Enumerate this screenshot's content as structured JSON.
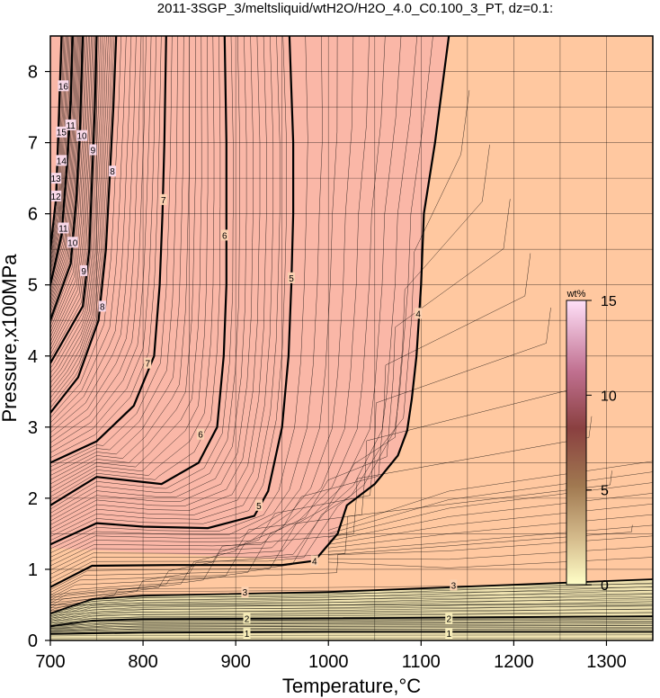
{
  "chart_data": {
    "type": "contour",
    "title": "2011-3SGP_3/meltsliquid/wtH2O/H2O_4.0_C0.100_3_PT, dz=0.1:",
    "xlabel": "Temperature,°C",
    "ylabel": "Pressure,x100MPa",
    "xlim": [
      700,
      1350
    ],
    "ylim": [
      0,
      8.5
    ],
    "xticks": [
      700,
      800,
      900,
      1000,
      1100,
      1200,
      1300
    ],
    "yticks": [
      0,
      1,
      2,
      3,
      4,
      5,
      6,
      7,
      8
    ],
    "grid": true,
    "colorbar": {
      "unit": "wt%",
      "range": [
        0,
        15
      ],
      "ticks": [
        0,
        5,
        10,
        15
      ],
      "colors": [
        "#ffffc8",
        "#d8c090",
        "#a07850",
        "#8a4040",
        "#c07090",
        "#ffe0f8"
      ]
    },
    "fill_colors": {
      "low_pressure": "#f0e6b4",
      "mid": "#f8c6a6",
      "high_water": "#f8a0a8",
      "bulk": "#ffc8a0"
    },
    "contours": [
      {
        "level": 1,
        "points": [
          [
            700,
            0.09
          ],
          [
            800,
            0.11
          ],
          [
            1000,
            0.12
          ],
          [
            1350,
            0.12
          ]
        ]
      },
      {
        "level": 2,
        "points": [
          [
            700,
            0.2
          ],
          [
            745,
            0.28
          ],
          [
            800,
            0.3
          ],
          [
            1000,
            0.31
          ],
          [
            1350,
            0.34
          ]
        ]
      },
      {
        "level": 3,
        "points": [
          [
            700,
            0.38
          ],
          [
            745,
            0.58
          ],
          [
            800,
            0.63
          ],
          [
            1000,
            0.68
          ],
          [
            1350,
            0.86
          ]
        ]
      },
      {
        "level": 4,
        "points": [
          [
            700,
            0.75
          ],
          [
            745,
            1.05
          ],
          [
            830,
            1.06
          ],
          [
            950,
            1.06
          ],
          [
            985,
            1.12
          ],
          [
            1010,
            1.5
          ],
          [
            1020,
            1.9
          ],
          [
            1050,
            2.2
          ],
          [
            1075,
            2.6
          ],
          [
            1085,
            2.95
          ],
          [
            1090,
            3.4
          ],
          [
            1095,
            4.0
          ],
          [
            1100,
            5.0
          ],
          [
            1103,
            6.0
          ],
          [
            1115,
            7.0
          ],
          [
            1120,
            7.5
          ],
          [
            1130,
            8.5
          ]
        ]
      },
      {
        "level": 5,
        "points": [
          [
            700,
            1.35
          ],
          [
            750,
            1.65
          ],
          [
            800,
            1.6
          ],
          [
            870,
            1.58
          ],
          [
            920,
            1.75
          ],
          [
            935,
            2.1
          ],
          [
            950,
            3.0
          ],
          [
            957,
            4.0
          ],
          [
            960,
            5.0
          ],
          [
            962,
            6.0
          ],
          [
            962,
            7.0
          ],
          [
            958,
            8.5
          ]
        ]
      },
      {
        "level": 6,
        "points": [
          [
            700,
            1.9
          ],
          [
            750,
            2.3
          ],
          [
            820,
            2.2
          ],
          [
            860,
            2.5
          ],
          [
            880,
            3.0
          ],
          [
            887,
            4.0
          ],
          [
            890,
            5.0
          ],
          [
            890,
            6.0
          ],
          [
            890,
            7.0
          ],
          [
            888,
            8.5
          ]
        ]
      },
      {
        "level": 7,
        "points": [
          [
            700,
            2.5
          ],
          [
            750,
            2.8
          ],
          [
            790,
            3.3
          ],
          [
            812,
            4.0
          ],
          [
            818,
            5.0
          ],
          [
            821,
            6.0
          ],
          [
            823,
            7.0
          ],
          [
            825,
            8.5
          ]
        ]
      },
      {
        "level": 8,
        "points": [
          [
            700,
            3.2
          ],
          [
            730,
            3.7
          ],
          [
            752,
            4.5
          ],
          [
            760,
            5.5
          ],
          [
            764,
            6.5
          ],
          [
            768,
            7.5
          ],
          [
            771,
            8.5
          ]
        ]
      },
      {
        "level": 9,
        "points": [
          [
            700,
            3.9
          ],
          [
            735,
            4.7
          ],
          [
            742,
            5.5
          ],
          [
            745,
            6.5
          ],
          [
            748,
            7.5
          ],
          [
            750,
            8.5
          ]
        ]
      },
      {
        "level": 10,
        "points": [
          [
            700,
            4.5
          ],
          [
            722,
            5.3
          ],
          [
            728,
            6.2
          ],
          [
            732,
            7.2
          ],
          [
            735,
            8.5
          ]
        ]
      },
      {
        "level": 11,
        "points": [
          [
            700,
            5.0
          ],
          [
            712,
            5.7
          ],
          [
            718,
            6.7
          ],
          [
            722,
            7.6
          ],
          [
            724,
            8.5
          ]
        ]
      },
      {
        "level": 12,
        "points": [
          [
            700,
            5.5
          ],
          [
            706,
            6.2
          ],
          [
            709,
            7.3
          ],
          [
            712,
            8.5
          ]
        ]
      }
    ],
    "contour_labels": [
      {
        "text": "1",
        "x": 912,
        "y": 0.1
      },
      {
        "text": "1",
        "x": 1130,
        "y": 0.1
      },
      {
        "text": "2",
        "x": 912,
        "y": 0.31
      },
      {
        "text": "2",
        "x": 1130,
        "y": 0.31
      },
      {
        "text": "3",
        "x": 910,
        "y": 0.68
      },
      {
        "text": "3",
        "x": 1135,
        "y": 0.78
      },
      {
        "text": "4",
        "x": 985,
        "y": 1.12
      },
      {
        "text": "4",
        "x": 1097,
        "y": 4.6
      },
      {
        "text": "5",
        "x": 925,
        "y": 1.9
      },
      {
        "text": "5",
        "x": 960,
        "y": 5.1
      },
      {
        "text": "6",
        "x": 862,
        "y": 2.9
      },
      {
        "text": "6",
        "x": 888,
        "y": 5.7
      },
      {
        "text": "7",
        "x": 805,
        "y": 3.9
      },
      {
        "text": "7",
        "x": 822,
        "y": 6.2
      },
      {
        "text": "8",
        "x": 756,
        "y": 4.7
      },
      {
        "text": "8",
        "x": 767,
        "y": 6.6
      },
      {
        "text": "9",
        "x": 736,
        "y": 5.2
      },
      {
        "text": "9",
        "x": 746,
        "y": 6.9
      },
      {
        "text": "10",
        "x": 724,
        "y": 5.6
      },
      {
        "text": "10",
        "x": 734,
        "y": 7.1
      },
      {
        "text": "11",
        "x": 714,
        "y": 5.8
      },
      {
        "text": "11",
        "x": 722,
        "y": 7.25
      },
      {
        "text": "12",
        "x": 706,
        "y": 6.25
      },
      {
        "text": "13",
        "x": 706,
        "y": 6.5
      },
      {
        "text": "14",
        "x": 712,
        "y": 6.75
      },
      {
        "text": "15",
        "x": 712,
        "y": 7.15
      },
      {
        "text": "16",
        "x": 714,
        "y": 7.8
      }
    ]
  }
}
